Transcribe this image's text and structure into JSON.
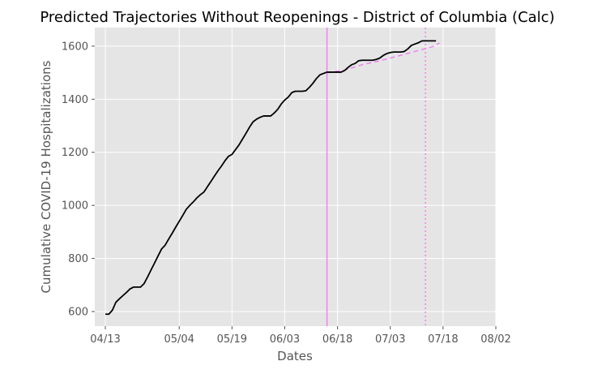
{
  "chart_data": {
    "type": "line",
    "title": "Predicted Trajectories Without Reopenings - District of Columbia (Calc)",
    "xlabel": "Dates",
    "ylabel": "Cumulative COVID-19 Hospitalizations",
    "xlim": [
      "2020-04-10",
      "2020-08-02"
    ],
    "ylim": [
      545,
      1670
    ],
    "xticks": [
      {
        "date": "2020-04-13",
        "label": "04/13"
      },
      {
        "date": "2020-05-04",
        "label": "05/04"
      },
      {
        "date": "2020-05-19",
        "label": "05/19"
      },
      {
        "date": "2020-06-03",
        "label": "06/03"
      },
      {
        "date": "2020-06-18",
        "label": "06/18"
      },
      {
        "date": "2020-07-03",
        "label": "07/03"
      },
      {
        "date": "2020-07-18",
        "label": "07/18"
      },
      {
        "date": "2020-08-02",
        "label": "08/02"
      }
    ],
    "yticks": [
      600,
      800,
      1000,
      1200,
      1400,
      1600
    ],
    "grid": true,
    "colors": {
      "background": "#e5e5e5",
      "grid": "#ffffff",
      "actual": "#000000",
      "predicted": "#ee82ee",
      "marker": "#ee82ee"
    },
    "series": [
      {
        "style": "solid",
        "points": [
          [
            "2020-04-13",
            590
          ],
          [
            "2020-04-14",
            590
          ],
          [
            "2020-04-15",
            605
          ],
          [
            "2020-04-16",
            635
          ],
          [
            "2020-04-17",
            648
          ],
          [
            "2020-04-18",
            660
          ],
          [
            "2020-04-19",
            672
          ],
          [
            "2020-04-20",
            685
          ],
          [
            "2020-04-21",
            692
          ],
          [
            "2020-04-22",
            692
          ],
          [
            "2020-04-23",
            692
          ],
          [
            "2020-04-24",
            705
          ],
          [
            "2020-04-25",
            730
          ],
          [
            "2020-04-26",
            757
          ],
          [
            "2020-04-27",
            783
          ],
          [
            "2020-04-28",
            810
          ],
          [
            "2020-04-29",
            836
          ],
          [
            "2020-04-30",
            850
          ],
          [
            "2020-05-01",
            873
          ],
          [
            "2020-05-02",
            895
          ],
          [
            "2020-05-03",
            918
          ],
          [
            "2020-05-04",
            940
          ],
          [
            "2020-05-05",
            962
          ],
          [
            "2020-05-06",
            985
          ],
          [
            "2020-05-07",
            1000
          ],
          [
            "2020-05-08",
            1013
          ],
          [
            "2020-05-09",
            1028
          ],
          [
            "2020-05-10",
            1040
          ],
          [
            "2020-05-11",
            1050
          ],
          [
            "2020-05-12",
            1070
          ],
          [
            "2020-05-13",
            1090
          ],
          [
            "2020-05-14",
            1110
          ],
          [
            "2020-05-15",
            1130
          ],
          [
            "2020-05-16",
            1148
          ],
          [
            "2020-05-17",
            1168
          ],
          [
            "2020-05-18",
            1185
          ],
          [
            "2020-05-19",
            1192
          ],
          [
            "2020-05-20",
            1210
          ],
          [
            "2020-05-21",
            1228
          ],
          [
            "2020-05-22",
            1250
          ],
          [
            "2020-05-23",
            1272
          ],
          [
            "2020-05-24",
            1295
          ],
          [
            "2020-05-25",
            1315
          ],
          [
            "2020-05-26",
            1325
          ],
          [
            "2020-05-27",
            1332
          ],
          [
            "2020-05-28",
            1337
          ],
          [
            "2020-05-29",
            1337
          ],
          [
            "2020-05-30",
            1337
          ],
          [
            "2020-05-31",
            1348
          ],
          [
            "2020-06-01",
            1362
          ],
          [
            "2020-06-02",
            1382
          ],
          [
            "2020-06-03",
            1397
          ],
          [
            "2020-06-04",
            1408
          ],
          [
            "2020-06-05",
            1425
          ],
          [
            "2020-06-06",
            1430
          ],
          [
            "2020-06-07",
            1430
          ],
          [
            "2020-06-08",
            1430
          ],
          [
            "2020-06-09",
            1432
          ],
          [
            "2020-06-10",
            1445
          ],
          [
            "2020-06-11",
            1460
          ],
          [
            "2020-06-12",
            1478
          ],
          [
            "2020-06-13",
            1492
          ],
          [
            "2020-06-14",
            1497
          ],
          [
            "2020-06-15",
            1502
          ],
          [
            "2020-06-16",
            1502
          ],
          [
            "2020-06-17",
            1502
          ],
          [
            "2020-06-18",
            1502
          ],
          [
            "2020-06-19",
            1502
          ],
          [
            "2020-06-20",
            1508
          ],
          [
            "2020-06-21",
            1520
          ],
          [
            "2020-06-22",
            1530
          ],
          [
            "2020-06-23",
            1535
          ],
          [
            "2020-06-24",
            1545
          ],
          [
            "2020-06-25",
            1547
          ],
          [
            "2020-06-26",
            1547
          ],
          [
            "2020-06-27",
            1547
          ],
          [
            "2020-06-28",
            1547
          ],
          [
            "2020-06-29",
            1550
          ],
          [
            "2020-06-30",
            1555
          ],
          [
            "2020-07-01",
            1565
          ],
          [
            "2020-07-02",
            1572
          ],
          [
            "2020-07-03",
            1576
          ],
          [
            "2020-07-04",
            1578
          ],
          [
            "2020-07-05",
            1578
          ],
          [
            "2020-07-06",
            1578
          ],
          [
            "2020-07-07",
            1580
          ],
          [
            "2020-07-08",
            1590
          ],
          [
            "2020-07-09",
            1603
          ],
          [
            "2020-07-10",
            1608
          ],
          [
            "2020-07-11",
            1613
          ],
          [
            "2020-07-12",
            1620
          ],
          [
            "2020-07-13",
            1620
          ],
          [
            "2020-07-14",
            1620
          ],
          [
            "2020-07-15",
            1620
          ],
          [
            "2020-07-16",
            1620
          ]
        ]
      },
      {
        "style": "dashed",
        "points": [
          [
            "2020-06-15",
            1500
          ],
          [
            "2020-06-20",
            1510
          ],
          [
            "2020-06-25",
            1530
          ],
          [
            "2020-06-30",
            1545
          ],
          [
            "2020-07-05",
            1562
          ],
          [
            "2020-07-10",
            1580
          ],
          [
            "2020-07-15",
            1598
          ],
          [
            "2020-07-17",
            1612
          ]
        ]
      }
    ],
    "vertical_lines": [
      {
        "date": "2020-06-15",
        "style": "solid"
      },
      {
        "date": "2020-07-13",
        "style": "dotted"
      }
    ]
  }
}
